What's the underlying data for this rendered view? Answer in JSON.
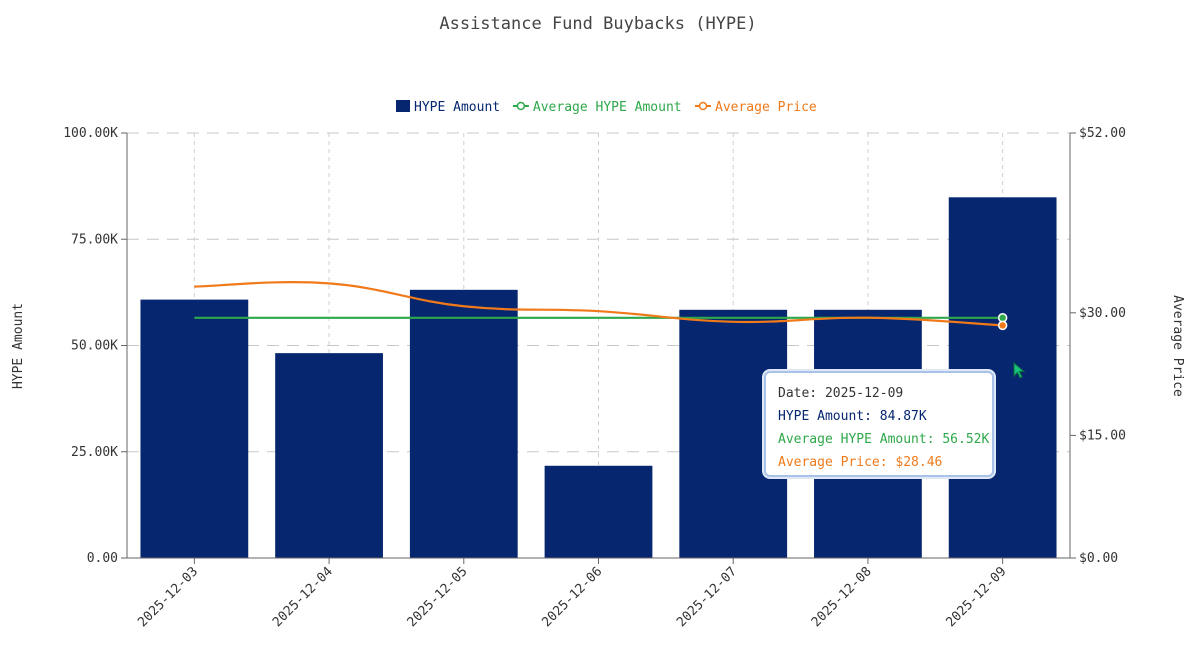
{
  "chart_data": {
    "type": "bar",
    "title": "Assistance Fund Buybacks (HYPE)",
    "categories": [
      "2025-12-03",
      "2025-12-04",
      "2025-12-05",
      "2025-12-06",
      "2025-12-07",
      "2025-12-08",
      "2025-12-09"
    ],
    "series": [
      {
        "name": "HYPE Amount",
        "type": "bar",
        "axis": "left",
        "color": "#06266f",
        "values": [
          60.8,
          48.2,
          63.1,
          21.7,
          58.4,
          58.4,
          84.87
        ]
      },
      {
        "name": "Average HYPE Amount",
        "type": "line",
        "axis": "left",
        "color": "#2ea84a",
        "values": [
          56.52,
          56.52,
          56.52,
          56.52,
          56.52,
          56.52,
          56.52
        ]
      },
      {
        "name": "Average Price",
        "type": "line",
        "axis": "right",
        "color": "#f07a1a",
        "values": [
          33.2,
          33.6,
          30.8,
          30.2,
          28.9,
          29.4,
          28.46
        ]
      }
    ],
    "ylabel": "HYPE Amount",
    "y2label": "Average Price",
    "ylim": [
      0,
      100
    ],
    "y2lim": [
      0,
      52
    ],
    "yticks": [
      "0.00",
      "25.00K",
      "50.00K",
      "75.00K",
      "100.00K"
    ],
    "ytick_values": [
      0,
      25,
      50,
      75,
      100
    ],
    "y2ticks": [
      "$0.00",
      "$15.00",
      "$30.00",
      "$52.00"
    ],
    "y2tick_values": [
      0,
      15,
      30,
      52
    ],
    "legend_position": "top-center",
    "grid": true
  },
  "tooltip": {
    "date": "Date: 2025-12-09",
    "hype_amount": "HYPE Amount: 84.87K",
    "avg_hype_amount": "Average HYPE Amount: 56.52K",
    "avg_price": "Average Price: $28.46"
  }
}
